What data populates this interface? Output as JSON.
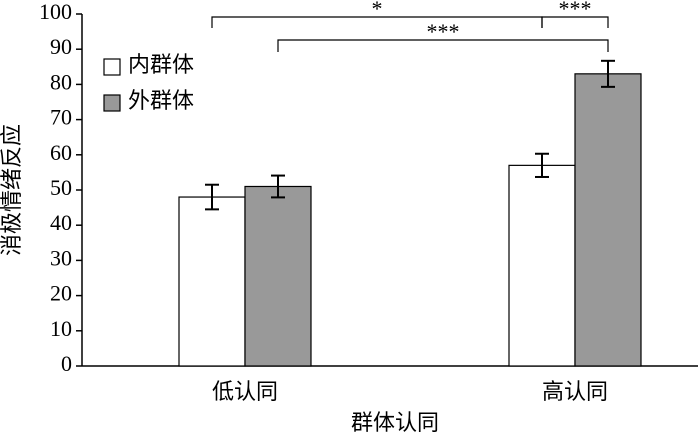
{
  "chart_data": {
    "type": "bar",
    "categories": [
      "低认同",
      "高认同"
    ],
    "series": [
      {
        "name": "内群体",
        "color": "#ffffff",
        "values": [
          48,
          57
        ],
        "errors": [
          3.5,
          3.3
        ]
      },
      {
        "name": "外群体",
        "color": "#999999",
        "values": [
          51,
          83
        ],
        "errors": [
          3.1,
          3.7
        ]
      }
    ],
    "xlabel": "群体认同",
    "ylabel": "消极情绪反应",
    "ylim": [
      0,
      100
    ],
    "yticks": [
      0,
      10,
      20,
      30,
      40,
      50,
      60,
      70,
      80,
      90,
      100
    ],
    "legend": "upper-left",
    "annotations": [
      "*",
      "***",
      "***"
    ]
  }
}
